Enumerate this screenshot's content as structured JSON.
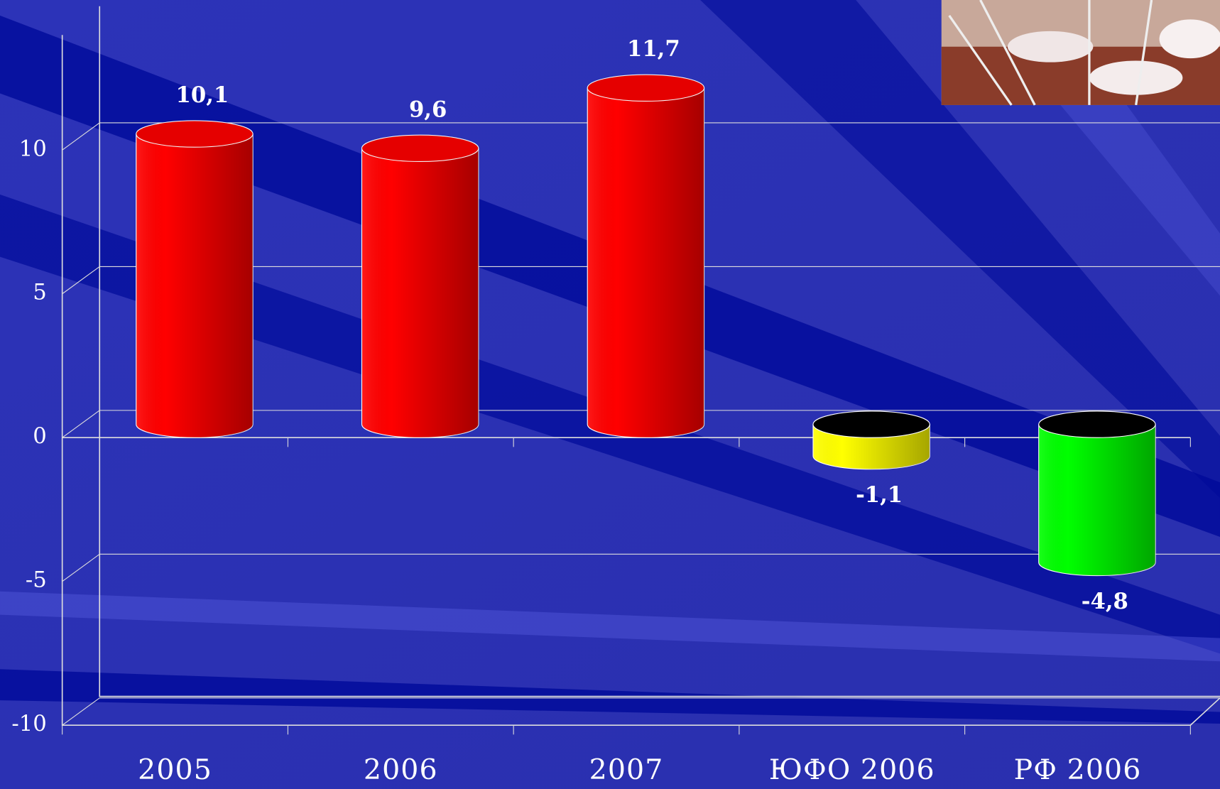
{
  "chart_data": {
    "type": "bar3d",
    "categories": [
      "2005",
      "2006",
      "2007",
      "ЮФО 2006",
      "РФ 2006"
    ],
    "values": [
      10.1,
      9.6,
      11.7,
      -1.1,
      -4.8
    ],
    "value_labels": [
      "10,1",
      "9,6",
      "11,7",
      "-1,1",
      "-4,8"
    ],
    "colors": [
      "#ff0000",
      "#ff0000",
      "#ff0000",
      "#ffff00",
      "#00ff00"
    ],
    "ylim": [
      -10,
      14
    ],
    "yticks": [
      -10,
      -5,
      0,
      5,
      10
    ],
    "grid": true
  }
}
